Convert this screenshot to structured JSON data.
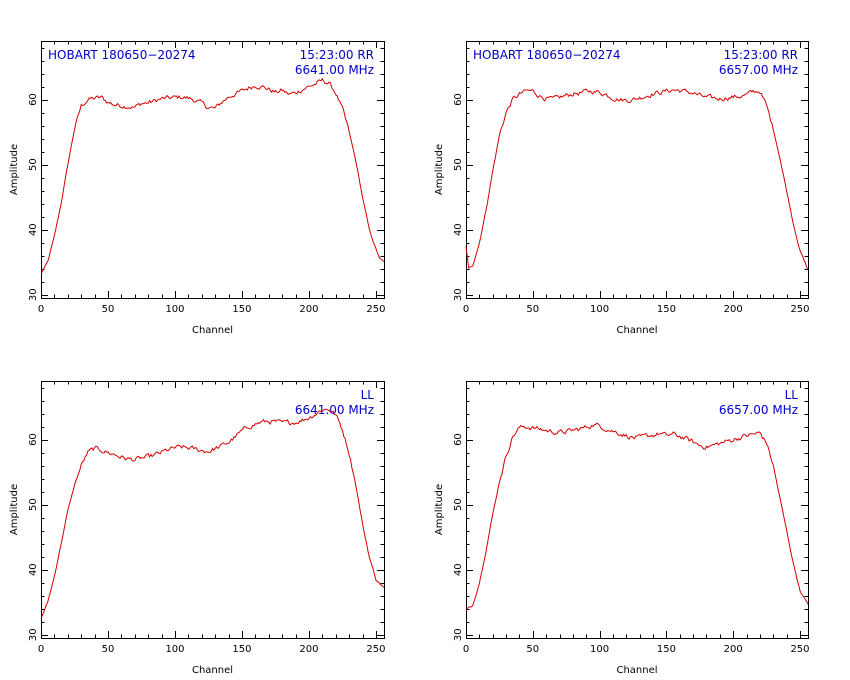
{
  "colors": {
    "trace": "#d40000",
    "annotation": "#0000c8",
    "axes": "#000000"
  },
  "chart_data": [
    {
      "type": "line",
      "source_label": "HOBART 180650−20274",
      "time_pol_label": "15:23:00  RR",
      "freq_label": "6641.00 MHz",
      "xlabel": "Channel",
      "ylabel": "Amplitude",
      "xlim": [
        0,
        256
      ],
      "ylim": [
        29.5,
        69
      ],
      "xticks": [
        0,
        50,
        100,
        150,
        200,
        250
      ],
      "yticks": [
        30,
        40,
        50,
        60
      ],
      "series": [
        {
          "points": [
            [
              0,
              33.2
            ],
            [
              5,
              35
            ],
            [
              10,
              39
            ],
            [
              15,
              44
            ],
            [
              20,
              50
            ],
            [
              25,
              55.5
            ],
            [
              30,
              59
            ],
            [
              35,
              60
            ],
            [
              40,
              60.2
            ],
            [
              45,
              60.3
            ],
            [
              50,
              59.6
            ],
            [
              55,
              59.2
            ],
            [
              60,
              59.1
            ],
            [
              65,
              59
            ],
            [
              70,
              58.8
            ],
            [
              75,
              59.4
            ],
            [
              80,
              59.5
            ],
            [
              85,
              59.8
            ],
            [
              90,
              60.1
            ],
            [
              95,
              60.2
            ],
            [
              100,
              60.3
            ],
            [
              105,
              60.4
            ],
            [
              110,
              60.2
            ],
            [
              115,
              59.9
            ],
            [
              120,
              59.4
            ],
            [
              125,
              58.8
            ],
            [
              130,
              58.6
            ],
            [
              135,
              59.6
            ],
            [
              140,
              60.4
            ],
            [
              145,
              60.9
            ],
            [
              150,
              61.3
            ],
            [
              155,
              61.8
            ],
            [
              160,
              62.2
            ],
            [
              165,
              62
            ],
            [
              170,
              61.6
            ],
            [
              175,
              61.1
            ],
            [
              180,
              61.4
            ],
            [
              185,
              60.8
            ],
            [
              190,
              61
            ],
            [
              195,
              61.6
            ],
            [
              200,
              62
            ],
            [
              205,
              62.4
            ],
            [
              210,
              62.9
            ],
            [
              215,
              62.5
            ],
            [
              220,
              61
            ],
            [
              225,
              58.5
            ],
            [
              230,
              55
            ],
            [
              235,
              50.5
            ],
            [
              240,
              45
            ],
            [
              245,
              40
            ],
            [
              250,
              37
            ],
            [
              253,
              35.5
            ],
            [
              256,
              35
            ]
          ]
        }
      ]
    },
    {
      "type": "line",
      "source_label": "HOBART 180650−20274",
      "time_pol_label": "15:23:00  RR",
      "freq_label": "6657.00 MHz",
      "xlabel": "Channel",
      "ylabel": "Amplitude",
      "xlim": [
        0,
        256
      ],
      "ylim": [
        29.5,
        69
      ],
      "xticks": [
        0,
        50,
        100,
        150,
        200,
        250
      ],
      "yticks": [
        30,
        40,
        50,
        60
      ],
      "series": [
        {
          "points": [
            [
              0,
              37.5
            ],
            [
              2,
              34
            ],
            [
              5,
              34.5
            ],
            [
              10,
              38
            ],
            [
              15,
              43
            ],
            [
              20,
              49
            ],
            [
              25,
              54.5
            ],
            [
              30,
              58
            ],
            [
              35,
              60
            ],
            [
              40,
              60.8
            ],
            [
              45,
              61.3
            ],
            [
              50,
              61.3
            ],
            [
              55,
              60.6
            ],
            [
              60,
              60.2
            ],
            [
              65,
              60
            ],
            [
              70,
              60.3
            ],
            [
              75,
              60.6
            ],
            [
              80,
              60.9
            ],
            [
              85,
              61
            ],
            [
              90,
              61.2
            ],
            [
              95,
              61.3
            ],
            [
              100,
              61.1
            ],
            [
              105,
              60.8
            ],
            [
              110,
              60.3
            ],
            [
              115,
              60
            ],
            [
              120,
              59.9
            ],
            [
              125,
              60
            ],
            [
              130,
              60.3
            ],
            [
              135,
              60.6
            ],
            [
              140,
              60.9
            ],
            [
              145,
              61.1
            ],
            [
              150,
              61.3
            ],
            [
              155,
              61.5
            ],
            [
              160,
              61.4
            ],
            [
              165,
              61.2
            ],
            [
              170,
              61
            ],
            [
              175,
              60.6
            ],
            [
              180,
              60.3
            ],
            [
              185,
              60.2
            ],
            [
              190,
              60.1
            ],
            [
              195,
              60.3
            ],
            [
              200,
              60.4
            ],
            [
              205,
              60.5
            ],
            [
              210,
              60.7
            ],
            [
              215,
              61.2
            ],
            [
              220,
              61.3
            ],
            [
              225,
              59
            ],
            [
              230,
              55.5
            ],
            [
              235,
              51
            ],
            [
              240,
              46
            ],
            [
              245,
              41
            ],
            [
              250,
              36.8
            ],
            [
              256,
              33.8
            ]
          ]
        }
      ]
    },
    {
      "type": "line",
      "time_pol_label": "LL",
      "freq_label": "6641.00 MHz",
      "xlabel": "Channel",
      "ylabel": "Amplitude",
      "xlim": [
        0,
        256
      ],
      "ylim": [
        29.5,
        69
      ],
      "xticks": [
        0,
        50,
        100,
        150,
        200,
        250
      ],
      "yticks": [
        30,
        40,
        50,
        60
      ],
      "series": [
        {
          "points": [
            [
              0,
              32.5
            ],
            [
              5,
              35
            ],
            [
              10,
              39
            ],
            [
              15,
              44
            ],
            [
              20,
              49
            ],
            [
              25,
              53
            ],
            [
              30,
              56
            ],
            [
              35,
              58
            ],
            [
              40,
              58.6
            ],
            [
              45,
              58.4
            ],
            [
              50,
              58
            ],
            [
              55,
              57.7
            ],
            [
              60,
              57.3
            ],
            [
              65,
              57
            ],
            [
              70,
              56.9
            ],
            [
              75,
              57.1
            ],
            [
              80,
              57.3
            ],
            [
              85,
              57.6
            ],
            [
              90,
              58
            ],
            [
              95,
              58.4
            ],
            [
              100,
              58.7
            ],
            [
              105,
              58.8
            ],
            [
              110,
              58.7
            ],
            [
              115,
              58.5
            ],
            [
              120,
              58.3
            ],
            [
              125,
              58.2
            ],
            [
              130,
              58.6
            ],
            [
              135,
              59
            ],
            [
              140,
              59.6
            ],
            [
              145,
              60.4
            ],
            [
              150,
              61.3
            ],
            [
              155,
              62
            ],
            [
              160,
              62.4
            ],
            [
              165,
              62.7
            ],
            [
              170,
              62.8
            ],
            [
              175,
              62.7
            ],
            [
              180,
              62.5
            ],
            [
              185,
              62.6
            ],
            [
              190,
              62.7
            ],
            [
              195,
              63
            ],
            [
              200,
              63.4
            ],
            [
              205,
              64
            ],
            [
              210,
              64.6
            ],
            [
              215,
              64.7
            ],
            [
              220,
              63.8
            ],
            [
              225,
              61.5
            ],
            [
              230,
              58
            ],
            [
              235,
              53
            ],
            [
              240,
              47
            ],
            [
              245,
              42
            ],
            [
              250,
              38.5
            ],
            [
              256,
              37.2
            ]
          ]
        }
      ]
    },
    {
      "type": "line",
      "time_pol_label": "LL",
      "freq_label": "6657.00 MHz",
      "xlabel": "Channel",
      "ylabel": "Amplitude",
      "xlim": [
        0,
        256
      ],
      "ylim": [
        29.5,
        69
      ],
      "xticks": [
        0,
        50,
        100,
        150,
        200,
        250
      ],
      "yticks": [
        30,
        40,
        50,
        60
      ],
      "series": [
        {
          "points": [
            [
              0,
              33.8
            ],
            [
              5,
              34.5
            ],
            [
              10,
              38
            ],
            [
              15,
              43
            ],
            [
              20,
              48.5
            ],
            [
              25,
              53.5
            ],
            [
              30,
              57.5
            ],
            [
              35,
              60.5
            ],
            [
              40,
              61.8
            ],
            [
              45,
              62
            ],
            [
              50,
              61.8
            ],
            [
              55,
              61.6
            ],
            [
              60,
              61.4
            ],
            [
              65,
              61.2
            ],
            [
              70,
              61.1
            ],
            [
              75,
              61.2
            ],
            [
              80,
              61.4
            ],
            [
              85,
              61.6
            ],
            [
              90,
              61.9
            ],
            [
              95,
              62.3
            ],
            [
              100,
              62.1
            ],
            [
              105,
              61.7
            ],
            [
              110,
              61.3
            ],
            [
              115,
              61
            ],
            [
              120,
              60.6
            ],
            [
              125,
              60.3
            ],
            [
              130,
              60.2
            ],
            [
              135,
              60.5
            ],
            [
              140,
              60.7
            ],
            [
              145,
              60.9
            ],
            [
              150,
              60.6
            ],
            [
              155,
              60.8
            ],
            [
              160,
              60.5
            ],
            [
              165,
              60.1
            ],
            [
              170,
              59.6
            ],
            [
              175,
              59.1
            ],
            [
              180,
              58.9
            ],
            [
              185,
              59.1
            ],
            [
              190,
              59.4
            ],
            [
              195,
              59.7
            ],
            [
              200,
              60
            ],
            [
              205,
              60.3
            ],
            [
              210,
              60.6
            ],
            [
              215,
              60.8
            ],
            [
              220,
              61
            ],
            [
              225,
              59.5
            ],
            [
              230,
              56
            ],
            [
              235,
              51
            ],
            [
              240,
              46
            ],
            [
              245,
              41
            ],
            [
              250,
              36.8
            ],
            [
              256,
              34.6
            ]
          ]
        }
      ]
    }
  ]
}
